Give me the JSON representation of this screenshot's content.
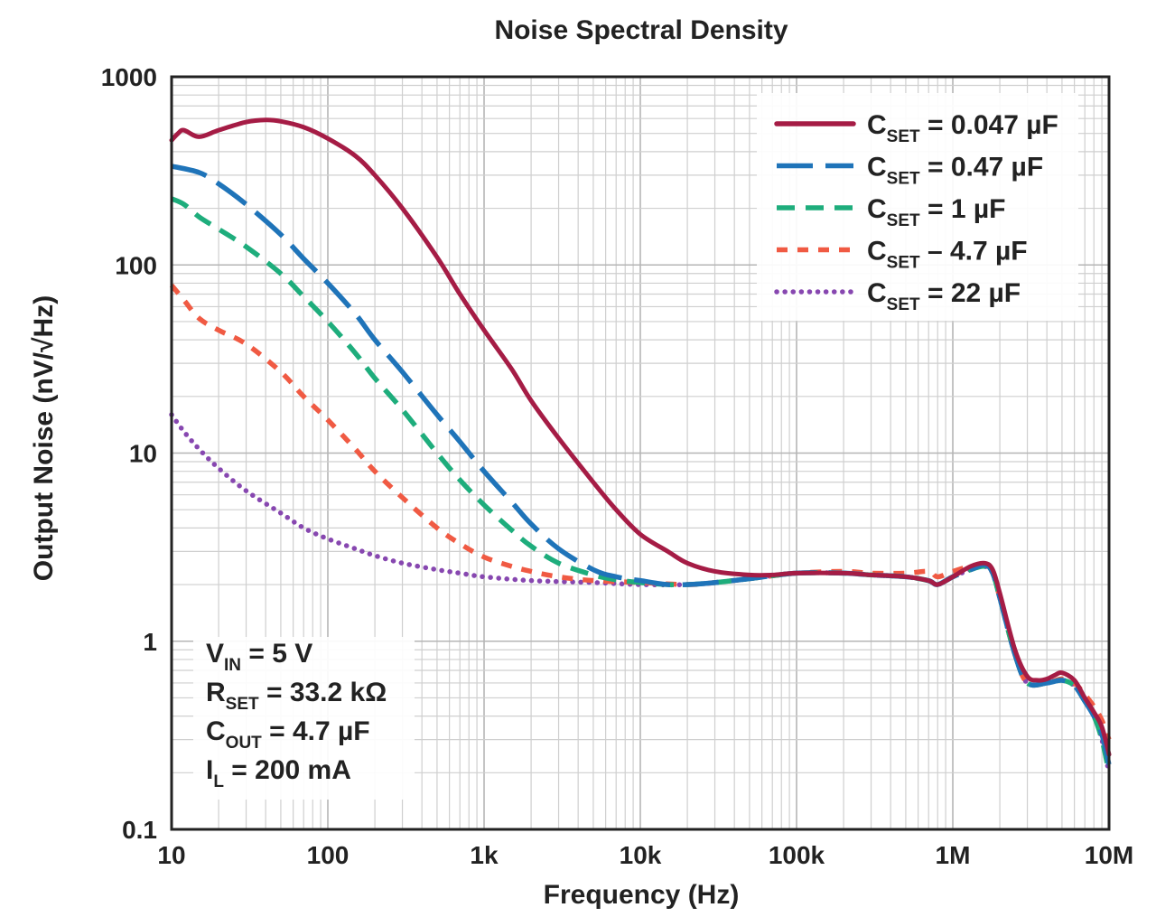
{
  "chart_data": {
    "type": "line",
    "title": "Noise Spectral Density",
    "xlabel": "Frequency (Hz)",
    "ylabel": "Output Noise (nV/√Hz)",
    "xscale": "log",
    "yscale": "log",
    "xlim": [
      10,
      10000000
    ],
    "ylim": [
      0.1,
      1000
    ],
    "x_ticks": [
      {
        "value": 10,
        "label": "10"
      },
      {
        "value": 100,
        "label": "100"
      },
      {
        "value": 1000,
        "label": "1k"
      },
      {
        "value": 10000,
        "label": "10k"
      },
      {
        "value": 100000,
        "label": "100k"
      },
      {
        "value": 1000000,
        "label": "1M"
      },
      {
        "value": 10000000,
        "label": "10M"
      }
    ],
    "y_ticks": [
      {
        "value": 0.1,
        "label": "0.1"
      },
      {
        "value": 1,
        "label": "1"
      },
      {
        "value": 10,
        "label": "10"
      },
      {
        "value": 100,
        "label": "100"
      },
      {
        "value": 1000,
        "label": "1000"
      }
    ],
    "grid": true,
    "legend_position": "top-right",
    "series": [
      {
        "name": "CSET = 0.047 µF",
        "legend_main": "C",
        "legend_sub": "SET",
        "legend_rest": " = 0.047 µF",
        "color": "#a51c45",
        "dash": "solid",
        "points": [
          [
            10,
            460
          ],
          [
            11,
            500
          ],
          [
            12,
            520
          ],
          [
            15,
            480
          ],
          [
            20,
            520
          ],
          [
            30,
            575
          ],
          [
            40,
            590
          ],
          [
            50,
            580
          ],
          [
            70,
            540
          ],
          [
            100,
            470
          ],
          [
            150,
            380
          ],
          [
            200,
            300
          ],
          [
            300,
            200
          ],
          [
            500,
            110
          ],
          [
            700,
            70
          ],
          [
            1000,
            45
          ],
          [
            1500,
            28
          ],
          [
            2000,
            19
          ],
          [
            3000,
            12
          ],
          [
            5000,
            7
          ],
          [
            7000,
            5
          ],
          [
            10000,
            3.7
          ],
          [
            15000,
            3.0
          ],
          [
            20000,
            2.6
          ],
          [
            30000,
            2.35
          ],
          [
            50000,
            2.25
          ],
          [
            70000,
            2.25
          ],
          [
            100000,
            2.3
          ],
          [
            200000,
            2.3
          ],
          [
            300000,
            2.25
          ],
          [
            500000,
            2.2
          ],
          [
            700000,
            2.1
          ],
          [
            800000,
            2.0
          ],
          [
            1000000,
            2.2
          ],
          [
            1300000,
            2.5
          ],
          [
            1600000,
            2.6
          ],
          [
            1800000,
            2.4
          ],
          [
            2000000,
            1.8
          ],
          [
            2500000,
            0.9
          ],
          [
            3000000,
            0.65
          ],
          [
            3500000,
            0.62
          ],
          [
            4000000,
            0.63
          ],
          [
            4500000,
            0.66
          ],
          [
            5000000,
            0.68
          ],
          [
            6000000,
            0.62
          ],
          [
            7000000,
            0.5
          ],
          [
            8000000,
            0.42
          ],
          [
            9000000,
            0.35
          ],
          [
            10000000,
            0.25
          ]
        ]
      },
      {
        "name": "CSET = 0.47 µF",
        "legend_main": "C",
        "legend_sub": "SET",
        "legend_rest": " = 0.47 µF",
        "color": "#1f74b9",
        "dash": "long-dash",
        "points": [
          [
            10,
            335
          ],
          [
            15,
            310
          ],
          [
            20,
            270
          ],
          [
            30,
            210
          ],
          [
            50,
            145
          ],
          [
            70,
            108
          ],
          [
            100,
            80
          ],
          [
            150,
            55
          ],
          [
            200,
            40
          ],
          [
            300,
            27
          ],
          [
            500,
            16
          ],
          [
            700,
            11.5
          ],
          [
            1000,
            8
          ],
          [
            1500,
            5.5
          ],
          [
            2000,
            4.2
          ],
          [
            3000,
            3.1
          ],
          [
            5000,
            2.4
          ],
          [
            7000,
            2.2
          ],
          [
            10000,
            2.1
          ],
          [
            15000,
            2.0
          ],
          [
            20000,
            2.0
          ],
          [
            30000,
            2.05
          ],
          [
            50000,
            2.15
          ],
          [
            100000,
            2.3
          ],
          [
            200000,
            2.3
          ],
          [
            300000,
            2.25
          ],
          [
            500000,
            2.2
          ],
          [
            700000,
            2.1
          ],
          [
            800000,
            2.0
          ],
          [
            1000000,
            2.2
          ],
          [
            1300000,
            2.4
          ],
          [
            1600000,
            2.55
          ],
          [
            1800000,
            2.3
          ],
          [
            2000000,
            1.7
          ],
          [
            2500000,
            0.85
          ],
          [
            3000000,
            0.6
          ],
          [
            4000000,
            0.6
          ],
          [
            5000000,
            0.62
          ],
          [
            6000000,
            0.58
          ],
          [
            7000000,
            0.48
          ],
          [
            8000000,
            0.4
          ],
          [
            9000000,
            0.32
          ],
          [
            10000000,
            0.22
          ]
        ]
      },
      {
        "name": "CSET = 1 µF",
        "legend_main": "C",
        "legend_sub": "SET",
        "legend_rest": " = 1 µF",
        "color": "#1ead7c",
        "dash": "medium-dash",
        "points": [
          [
            10,
            225
          ],
          [
            12,
            210
          ],
          [
            15,
            180
          ],
          [
            20,
            155
          ],
          [
            30,
            125
          ],
          [
            50,
            90
          ],
          [
            70,
            68
          ],
          [
            100,
            50
          ],
          [
            150,
            34
          ],
          [
            200,
            25
          ],
          [
            300,
            17
          ],
          [
            500,
            10
          ],
          [
            700,
            7.2
          ],
          [
            1000,
            5.3
          ],
          [
            1500,
            3.9
          ],
          [
            2000,
            3.2
          ],
          [
            3000,
            2.6
          ],
          [
            5000,
            2.25
          ],
          [
            7000,
            2.12
          ],
          [
            10000,
            2.05
          ],
          [
            15000,
            2.0
          ],
          [
            20000,
            2.0
          ],
          [
            30000,
            2.05
          ],
          [
            50000,
            2.15
          ],
          [
            100000,
            2.3
          ],
          [
            200000,
            2.3
          ],
          [
            300000,
            2.25
          ],
          [
            500000,
            2.2
          ],
          [
            700000,
            2.1
          ],
          [
            800000,
            2.0
          ],
          [
            1000000,
            2.2
          ],
          [
            1300000,
            2.4
          ],
          [
            1600000,
            2.5
          ],
          [
            1800000,
            2.3
          ],
          [
            2000000,
            1.7
          ],
          [
            2500000,
            0.85
          ],
          [
            3000000,
            0.6
          ],
          [
            4000000,
            0.6
          ],
          [
            5000000,
            0.62
          ],
          [
            6000000,
            0.58
          ],
          [
            7000000,
            0.48
          ],
          [
            8000000,
            0.4
          ],
          [
            9000000,
            0.3
          ],
          [
            10000000,
            0.2
          ]
        ]
      },
      {
        "name": "CSET – 4.7 µF",
        "legend_main": "C",
        "legend_sub": "SET",
        "legend_rest": " – 4.7 µF",
        "color": "#f05a43",
        "dash": "short-dash",
        "points": [
          [
            10,
            78
          ],
          [
            12,
            65
          ],
          [
            15,
            52
          ],
          [
            20,
            45
          ],
          [
            30,
            38
          ],
          [
            50,
            27
          ],
          [
            70,
            20
          ],
          [
            100,
            15
          ],
          [
            150,
            10.5
          ],
          [
            200,
            8
          ],
          [
            300,
            5.8
          ],
          [
            500,
            4.0
          ],
          [
            700,
            3.3
          ],
          [
            1000,
            2.8
          ],
          [
            1500,
            2.5
          ],
          [
            2000,
            2.35
          ],
          [
            3000,
            2.2
          ],
          [
            5000,
            2.1
          ],
          [
            10000,
            2.05
          ],
          [
            20000,
            2.0
          ],
          [
            30000,
            2.05
          ],
          [
            50000,
            2.15
          ],
          [
            100000,
            2.3
          ],
          [
            200000,
            2.35
          ],
          [
            300000,
            2.3
          ],
          [
            500000,
            2.3
          ],
          [
            700000,
            2.35
          ],
          [
            800000,
            2.2
          ],
          [
            1000000,
            2.35
          ],
          [
            1300000,
            2.5
          ],
          [
            1600000,
            2.55
          ],
          [
            1800000,
            2.3
          ],
          [
            2000000,
            1.7
          ],
          [
            2500000,
            0.85
          ],
          [
            3000000,
            0.6
          ],
          [
            4000000,
            0.6
          ],
          [
            5000000,
            0.63
          ],
          [
            6000000,
            0.6
          ],
          [
            7000000,
            0.52
          ],
          [
            8000000,
            0.45
          ],
          [
            9000000,
            0.38
          ],
          [
            10000000,
            0.3
          ]
        ]
      },
      {
        "name": "CSET = 22 µF",
        "legend_main": "C",
        "legend_sub": "SET",
        "legend_rest": " = 22 µF",
        "color": "#8747b0",
        "dash": "dotted",
        "points": [
          [
            10,
            16
          ],
          [
            12,
            13
          ],
          [
            15,
            10.5
          ],
          [
            20,
            8.3
          ],
          [
            30,
            6.3
          ],
          [
            50,
            4.8
          ],
          [
            70,
            4.0
          ],
          [
            100,
            3.5
          ],
          [
            150,
            3.1
          ],
          [
            200,
            2.85
          ],
          [
            300,
            2.6
          ],
          [
            500,
            2.4
          ],
          [
            700,
            2.3
          ],
          [
            1000,
            2.2
          ],
          [
            2000,
            2.1
          ],
          [
            5000,
            2.05
          ],
          [
            10000,
            2.0
          ],
          [
            20000,
            2.0
          ],
          [
            30000,
            2.05
          ],
          [
            50000,
            2.15
          ],
          [
            100000,
            2.3
          ],
          [
            200000,
            2.3
          ],
          [
            300000,
            2.25
          ],
          [
            500000,
            2.2
          ],
          [
            700000,
            2.1
          ],
          [
            800000,
            2.0
          ],
          [
            1000000,
            2.2
          ],
          [
            1300000,
            2.4
          ],
          [
            1600000,
            2.5
          ],
          [
            1800000,
            2.3
          ],
          [
            2000000,
            1.7
          ],
          [
            2500000,
            0.85
          ],
          [
            3000000,
            0.6
          ],
          [
            4000000,
            0.6
          ],
          [
            5000000,
            0.62
          ],
          [
            6000000,
            0.58
          ],
          [
            7000000,
            0.48
          ],
          [
            8000000,
            0.4
          ],
          [
            9000000,
            0.3
          ],
          [
            10000000,
            0.2
          ]
        ]
      }
    ],
    "annotations": [
      {
        "main": "V",
        "sub": "IN",
        "rest": " = 5 V"
      },
      {
        "main": "R",
        "sub": "SET",
        "rest": " = 33.2 kΩ"
      },
      {
        "main": "C",
        "sub": "OUT",
        "rest": " = 4.7 µF"
      },
      {
        "main": "I",
        "sub": "L",
        "rest": " = 200 mA"
      }
    ]
  }
}
